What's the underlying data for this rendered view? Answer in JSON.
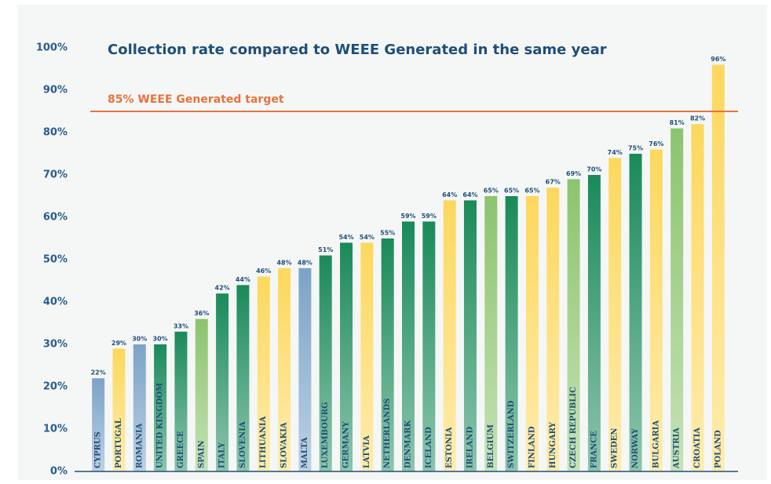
{
  "chart_data": {
    "type": "bar",
    "title": "Collection rate compared to WEEE Generated in the same year",
    "categories": [
      "CYPRUS",
      "PORTUGAL",
      "ROMANIA",
      "UNITED KINGDOM",
      "GREECE",
      "SPAIN",
      "ITALY",
      "SLOVENIA",
      "LITHUANIA",
      "SLOVAKIA",
      "MALTA",
      "LUXEMBOURG",
      "GERMANY",
      "LATVIA",
      "NETHERLANDS",
      "DENMARK",
      "ICELAND",
      "ESTONIA",
      "IRELAND",
      "BELGIUM",
      "SWITZERLAND",
      "FINLAND",
      "HUNGARY",
      "CZECH REPUBLIC",
      "FRANCE",
      "SWEDEN",
      "NORWAY",
      "BULGARIA",
      "AUSTRIA",
      "CROATIA",
      "POLAND"
    ],
    "values": [
      22,
      29,
      30,
      30,
      33,
      36,
      42,
      44,
      46,
      48,
      48,
      51,
      54,
      54,
      55,
      59,
      59,
      64,
      64,
      65,
      65,
      65,
      67,
      69,
      70,
      74,
      75,
      76,
      81,
      82,
      96
    ],
    "value_labels": [
      "22%",
      "29%",
      "30%",
      "30%",
      "33%",
      "36%",
      "42%",
      "44%",
      "46%",
      "48%",
      "48%",
      "51%",
      "54%",
      "54%",
      "55%",
      "59%",
      "59%",
      "64%",
      "64%",
      "65%",
      "65%",
      "65%",
      "67%",
      "69%",
      "70%",
      "74%",
      "75%",
      "76%",
      "81%",
      "82%",
      "96%"
    ],
    "colors": [
      "#7ba3c8",
      "#fdd85d",
      "#7ba3c8",
      "#1a8a5a",
      "#1a8a5a",
      "#8cc46e",
      "#1a8a5a",
      "#1a8a5a",
      "#fdd85d",
      "#fdd85d",
      "#7ba3c8",
      "#1a8a5a",
      "#1a8a5a",
      "#fdd85d",
      "#1a8a5a",
      "#1a8a5a",
      "#1a8a5a",
      "#fdd85d",
      "#1a8a5a",
      "#8cc46e",
      "#1a8a5a",
      "#fdd85d",
      "#fdd85d",
      "#8cc46e",
      "#1a8a5a",
      "#fdd85d",
      "#1a8a5a",
      "#fdd85d",
      "#8cc46e",
      "#fdd85d",
      "#fdd85d"
    ],
    "ylim": [
      0,
      100
    ],
    "yticks": [
      {
        "value": 0,
        "label": "0%"
      },
      {
        "value": 10,
        "label": "10%"
      },
      {
        "value": 20,
        "label": "20%"
      },
      {
        "value": 30,
        "label": "30%"
      },
      {
        "value": 40,
        "label": "40%"
      },
      {
        "value": 50,
        "label": "50%"
      },
      {
        "value": 60,
        "label": "60%"
      },
      {
        "value": 70,
        "label": "70%"
      },
      {
        "value": 80,
        "label": "80%"
      },
      {
        "value": 90,
        "label": "90%"
      },
      {
        "value": 100,
        "label": "100%"
      }
    ],
    "target": {
      "value": 85,
      "label": "85% WEEE Generated target",
      "color": "#e8733c"
    }
  }
}
